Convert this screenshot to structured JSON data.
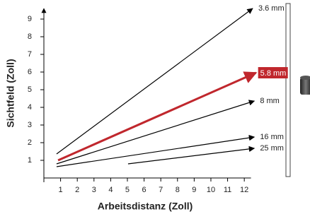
{
  "chart_data": {
    "type": "line",
    "x_label": "Arbeitsdistanz (Zoll)",
    "y_label": "Sichtfeld (Zoll)",
    "xlim": [
      0,
      12.4
    ],
    "ylim": [
      0,
      9.6
    ],
    "xticks": [
      1,
      2,
      3,
      4,
      5,
      6,
      7,
      8,
      9,
      10,
      11,
      12
    ],
    "yticks": [
      1,
      2,
      3,
      4,
      5,
      6,
      7,
      8,
      9
    ],
    "series": [
      {
        "name": "3.6 mm",
        "color": "#000000",
        "x": [
          0.76,
          12.5
        ],
        "values": [
          1.36,
          9.6
        ]
      },
      {
        "name": "5.8 mm",
        "color": "#c0272d",
        "highlighted": true,
        "x": [
          0.85,
          12.7
        ],
        "values": [
          1.0,
          5.96
        ]
      },
      {
        "name": "8 mm",
        "color": "#000000",
        "x": [
          0.76,
          12.6
        ],
        "values": [
          0.8,
          4.36
        ]
      },
      {
        "name": "16 mm",
        "color": "#000000",
        "x": [
          0.76,
          12.6
        ],
        "values": [
          0.64,
          2.32
        ]
      },
      {
        "name": "25 mm",
        "color": "#000000",
        "x": [
          5.04,
          12.6
        ],
        "values": [
          0.8,
          1.68
        ]
      }
    ]
  }
}
